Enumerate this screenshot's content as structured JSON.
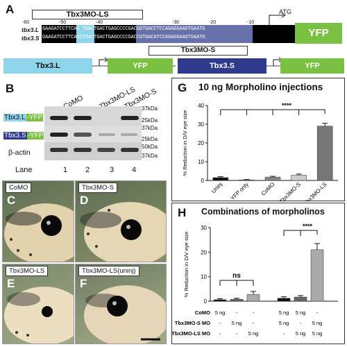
{
  "panel_a": {
    "letter": "A",
    "mo_ls_label": "Tbx3MO-LS",
    "mo_s_label": "Tbx3MO-S",
    "atg": "ATG",
    "seq_ticks": [
      "-60",
      "-50",
      "-40",
      "-30",
      "-20",
      "-10"
    ],
    "row_l_name": "tbx3.L",
    "row_s_name": "tbx3.S",
    "row_l_seq": "GAAGATCCTTCAC TGACTGACTGAGCCCCGACGGTGACCTCCAGAGGAAGTGAATG",
    "row_s_seq": "GAAGATCCTTCACCTGACTGACTGAGCCCCGACCGTGACATCCAGAGGAAGTGAATG",
    "yfp": "YFP",
    "construct_l": "Tbx3.L",
    "construct_s": "Tbx3.S",
    "construct_yfp": "YFP"
  },
  "panel_b": {
    "letter": "B",
    "columns": [
      "CoMO",
      "Tbx3MO-LS",
      "Tbx3MO-S"
    ],
    "row_l": "Tbx3.L",
    "row_s": "Tbx3.S",
    "row_yfp_suffix": "-YFP",
    "row_actin": "β-actin",
    "kda": [
      "37kDa",
      "25kDa",
      "37kDa",
      "25kDa",
      "50kDa",
      "37kDa"
    ],
    "lane_label": "Lane",
    "lanes": [
      "1",
      "2",
      "3",
      "4"
    ]
  },
  "panel_c": {
    "letter": "C",
    "title": "CoMO"
  },
  "panel_d": {
    "letter": "D",
    "title": "Tbx3MO-S"
  },
  "panel_e": {
    "letter": "E",
    "title": "Tbx3MO-LS"
  },
  "panel_f": {
    "letter": "F",
    "title": "Tbx3MO-LS(uninj)"
  },
  "chart_data": [
    {
      "panel": "G",
      "type": "bar",
      "title": "10 ng Morpholino injections",
      "ylabel": "% Reduction in D/V eye size",
      "categories": [
        "Uninj",
        "YFP only",
        "CoMO",
        "Tbx3MO-S",
        "Tbx3MO-LS"
      ],
      "values": [
        1.5,
        0.3,
        1.8,
        2.8,
        29.0
      ],
      "errors": [
        0.5,
        0.2,
        0.4,
        0.6,
        1.5
      ],
      "colors": [
        "#111111",
        "#555555",
        "#888888",
        "#cccccc",
        "#777777"
      ],
      "ylim": [
        0,
        40
      ],
      "yticks": [
        "0",
        "10",
        "20",
        "30",
        "40"
      ],
      "significance": "****"
    },
    {
      "panel": "H",
      "type": "bar",
      "title": "Combinations of morpholinos",
      "ylabel": "% Reduction in D/V eye size",
      "groups": [
        {
          "values": [
            0.6,
            0.8,
            2.8
          ],
          "errors": [
            0.4,
            0.4,
            1.2
          ]
        },
        {
          "values": [
            1.2,
            1.7,
            21.0
          ],
          "errors": [
            0.6,
            0.6,
            2.5
          ]
        }
      ],
      "colors": [
        "#111111",
        "#666666",
        "#aaaaaa"
      ],
      "ylim": [
        0,
        30
      ],
      "yticks": [
        "0",
        "10",
        "20",
        "30"
      ],
      "significance_left": "ns",
      "significance_right": "****",
      "table_rows": [
        {
          "label": "CoMO",
          "cells": [
            "5 ng",
            "-",
            "-",
            "5 ng",
            "5 ng",
            "-"
          ]
        },
        {
          "label": "Tbx3MO-S MO",
          "cells": [
            "-",
            "5 ng",
            "-",
            "5 ng",
            "-",
            "5 ng"
          ]
        },
        {
          "label": "Tbx3MO-LS MO",
          "cells": [
            "-",
            "-",
            "5 ng",
            "-",
            "5 ng",
            "5 ng"
          ]
        }
      ]
    }
  ]
}
